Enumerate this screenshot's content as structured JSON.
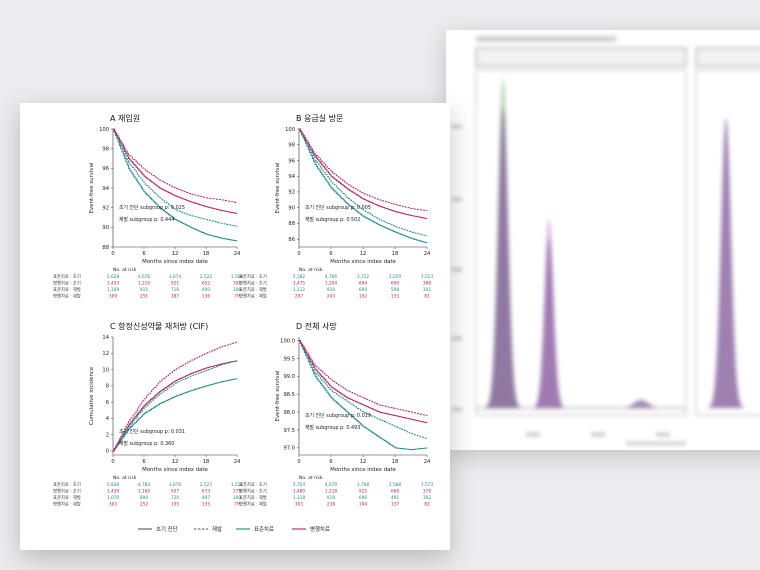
{
  "colors": {
    "teal": "#1f8a8c",
    "magenta": "#b0245e",
    "violet": "#8d6aa3",
    "purple_dark": "#5b3a6e",
    "green": "#8fbf88"
  },
  "back_figure": {
    "title": "",
    "strip_left": "",
    "strip_right": ""
  },
  "chart_data": [
    {
      "panel": "A",
      "type": "line",
      "title": "A  재입원",
      "xlabel": "Months since index date",
      "ylabel": "Event-free survival",
      "xlim": [
        0,
        24
      ],
      "ylim": [
        88,
        100
      ],
      "xticks": [
        "0",
        "6",
        "12",
        "18",
        "24"
      ],
      "yticks": [
        "88",
        "90",
        "92",
        "94",
        "96",
        "98",
        "100"
      ],
      "annotations": [
        "초기 진단 subgroup p:  0.025",
        "재발 subgroup p:  0.444"
      ],
      "series": [
        {
          "name": "표준치료 · 초기",
          "color": "teal",
          "dash": false,
          "x": [
            0,
            3,
            6,
            9,
            12,
            15,
            18,
            21,
            24
          ],
          "y": [
            100,
            96.0,
            93.6,
            92.0,
            90.8,
            90.0,
            89.3,
            88.9,
            88.6
          ]
        },
        {
          "name": "병행치료 · 초기",
          "color": "magenta",
          "dash": false,
          "x": [
            0,
            3,
            6,
            9,
            12,
            15,
            18,
            21,
            24
          ],
          "y": [
            100,
            97.0,
            95.2,
            94.0,
            93.2,
            92.6,
            92.1,
            91.7,
            91.4
          ]
        },
        {
          "name": "표준치료 · 재발",
          "color": "teal",
          "dash": true,
          "x": [
            0,
            3,
            6,
            9,
            12,
            15,
            18,
            21,
            24
          ],
          "y": [
            100,
            96.6,
            94.5,
            93.0,
            91.8,
            91.2,
            90.8,
            90.4,
            90.1
          ]
        },
        {
          "name": "병행치료 · 재발",
          "color": "magenta",
          "dash": true,
          "x": [
            0,
            3,
            6,
            9,
            12,
            15,
            18,
            21,
            24
          ],
          "y": [
            100,
            97.4,
            95.9,
            94.8,
            94.0,
            93.4,
            93.0,
            92.8,
            92.5
          ]
        }
      ],
      "risk_table": {
        "header": "No. at risk",
        "rows": [
          {
            "label": "표준치료 · 초기",
            "color": "teal",
            "values": [
              "5,628",
              "4,676",
              "3,674",
              "2,522",
              "1,560"
            ]
          },
          {
            "label": "병행치료 · 초기",
            "color": "magenta",
            "values": [
              "1,433",
              "1,210",
              "921",
              "652",
              "392"
            ]
          },
          {
            "label": "표준치료 · 재발",
            "color": "teal",
            "values": [
              "1,109",
              "915",
              "716",
              "490",
              "306"
            ]
          },
          {
            "label": "병행치료 · 재발",
            "color": "magenta",
            "values": [
              "309",
              "251",
              "187",
              "136",
              "79"
            ]
          }
        ]
      }
    },
    {
      "panel": "B",
      "type": "line",
      "title": "B  응급실 방문",
      "xlabel": "Months since index date",
      "ylabel": "Event-free survival",
      "xlim": [
        0,
        24
      ],
      "ylim": [
        85,
        100
      ],
      "xticks": [
        "0",
        "6",
        "12",
        "18",
        "24"
      ],
      "yticks": [
        "86",
        "88",
        "90",
        "92",
        "94",
        "96",
        "98",
        "100"
      ],
      "annotations": [
        "초기 진단 subgroup p:  0.005",
        "재발 subgroup p:  0.502"
      ],
      "series": [
        {
          "name": "표준치료 · 초기",
          "color": "teal",
          "dash": false,
          "x": [
            0,
            3,
            6,
            9,
            12,
            15,
            18,
            21,
            24
          ],
          "y": [
            100,
            95.5,
            92.5,
            90.5,
            88.9,
            87.8,
            86.9,
            86.1,
            85.5
          ]
        },
        {
          "name": "병행치료 · 초기",
          "color": "magenta",
          "dash": false,
          "x": [
            0,
            3,
            6,
            9,
            12,
            15,
            18,
            21,
            24
          ],
          "y": [
            100,
            96.5,
            94.0,
            92.4,
            91.1,
            90.2,
            89.5,
            89.0,
            88.6
          ]
        },
        {
          "name": "표준치료 · 재발",
          "color": "teal",
          "dash": true,
          "x": [
            0,
            3,
            6,
            9,
            12,
            15,
            18,
            21,
            24
          ],
          "y": [
            100,
            96.0,
            93.3,
            91.3,
            89.7,
            88.5,
            87.6,
            86.9,
            86.4
          ]
        },
        {
          "name": "병행치료 · 재발",
          "color": "magenta",
          "dash": true,
          "x": [
            0,
            3,
            6,
            9,
            12,
            15,
            18,
            21,
            24
          ],
          "y": [
            100,
            96.8,
            94.6,
            93.0,
            91.8,
            91.0,
            90.4,
            89.9,
            89.6
          ]
        }
      ],
      "risk_table": {
        "header": "No. at risk",
        "rows": [
          {
            "label": "표준치료 · 초기",
            "color": "teal",
            "values": [
              "5,582",
              "4,766",
              "3,712",
              "2,559",
              "1,523"
            ]
          },
          {
            "label": "병행치료 · 초기",
            "color": "magenta",
            "values": [
              "1,475",
              "1,204",
              "894",
              "669",
              "388"
            ]
          },
          {
            "label": "표준치료 · 재발",
            "color": "teal",
            "values": [
              "1,112",
              "910",
              "694",
              "508",
              "301"
            ]
          },
          {
            "label": "병행치료 · 재발",
            "color": "magenta",
            "values": [
              "297",
              "243",
              "192",
              "133",
              "81"
            ]
          }
        ]
      }
    },
    {
      "panel": "C",
      "type": "line",
      "title": "C  항정신성약물 재처방 (CIF)",
      "xlabel": "Months since index date",
      "ylabel": "Cumulative incidence",
      "xlim": [
        0,
        24
      ],
      "ylim": [
        -0.5,
        14
      ],
      "xticks": [
        "0",
        "6",
        "12",
        "18",
        "24"
      ],
      "yticks": [
        "0",
        "2",
        "4",
        "6",
        "8",
        "10",
        "12",
        "14"
      ],
      "annotations": [
        "초기 진단 subgroup p:  0.031",
        "재발 subgroup p:  0.360"
      ],
      "series": [
        {
          "name": "표준치료 · 초기",
          "color": "teal",
          "dash": false,
          "x": [
            0,
            3,
            6,
            9,
            12,
            15,
            18,
            21,
            24
          ],
          "y": [
            0,
            2.7,
            4.6,
            5.8,
            6.7,
            7.4,
            8.0,
            8.5,
            8.9
          ]
        },
        {
          "name": "병행치료 · 초기",
          "color": "magenta",
          "dash": false,
          "x": [
            0,
            3,
            6,
            9,
            12,
            15,
            18,
            21,
            24
          ],
          "y": [
            0,
            3.2,
            5.6,
            7.3,
            8.6,
            9.5,
            10.2,
            10.7,
            11.1
          ]
        },
        {
          "name": "표준치료 · 재발",
          "color": "teal",
          "dash": true,
          "x": [
            0,
            3,
            6,
            9,
            12,
            15,
            18,
            21,
            24
          ],
          "y": [
            0,
            3.0,
            5.3,
            7.0,
            8.3,
            9.2,
            9.9,
            10.6,
            11.1
          ]
        },
        {
          "name": "병행치료 · 재발",
          "color": "magenta",
          "dash": true,
          "x": [
            0,
            3,
            6,
            9,
            12,
            15,
            18,
            21,
            24
          ],
          "y": [
            0,
            3.6,
            6.4,
            8.5,
            10.0,
            11.1,
            12.0,
            12.8,
            13.4
          ]
        }
      ],
      "risk_table": {
        "header": "No. at risk",
        "rows": [
          {
            "label": "표준치료 · 초기",
            "color": "teal",
            "values": [
              "5,838",
              "4,784",
              "3,676",
              "2,527",
              "1,512"
            ]
          },
          {
            "label": "병행치료 · 초기",
            "color": "magenta",
            "values": [
              "1,439",
              "1,160",
              "937",
              "673",
              "379"
            ]
          },
          {
            "label": "표준치료 · 재발",
            "color": "teal",
            "values": [
              "1,070",
              "890",
              "720",
              "497",
              "300"
            ]
          },
          {
            "label": "병행치료 · 재발",
            "color": "magenta",
            "values": [
              "303",
              "252",
              "195",
              "135",
              "79"
            ]
          }
        ]
      }
    },
    {
      "panel": "D",
      "type": "line",
      "title": "D  전체 사망",
      "xlabel": "Months since index date",
      "ylabel": "Event-free survival",
      "xlim": [
        0,
        24
      ],
      "ylim": [
        96.8,
        100.1
      ],
      "xticks": [
        "0",
        "6",
        "12",
        "18",
        "24"
      ],
      "yticks": [
        "97.0",
        "97.5",
        "98.0",
        "98.5",
        "99.0",
        "99.5",
        "100.0"
      ],
      "annotations": [
        "초기 진단 subgroup p:  0.019",
        "재발 subgroup p:  0.493"
      ],
      "series": [
        {
          "name": "표준치료 · 초기",
          "color": "teal",
          "dash": false,
          "x": [
            0,
            3,
            6,
            9,
            12,
            15,
            18,
            21,
            24
          ],
          "y": [
            100,
            99.0,
            98.4,
            98.0,
            97.6,
            97.3,
            97.0,
            96.95,
            97.0
          ]
        },
        {
          "name": "병행치료 · 초기",
          "color": "magenta",
          "dash": false,
          "x": [
            0,
            3,
            6,
            9,
            12,
            15,
            18,
            21,
            24
          ],
          "y": [
            100,
            99.2,
            98.7,
            98.4,
            98.2,
            98.0,
            97.9,
            97.8,
            97.7
          ]
        },
        {
          "name": "표준치료 · 재발",
          "color": "teal",
          "dash": true,
          "x": [
            0,
            3,
            6,
            9,
            12,
            15,
            18,
            21,
            24
          ],
          "y": [
            100,
            99.1,
            98.6,
            98.3,
            98.0,
            97.8,
            97.6,
            97.4,
            97.25
          ]
        },
        {
          "name": "병행치료 · 재발",
          "color": "magenta",
          "dash": true,
          "x": [
            0,
            3,
            6,
            9,
            12,
            15,
            18,
            21,
            24
          ],
          "y": [
            100,
            99.3,
            98.9,
            98.6,
            98.4,
            98.2,
            98.1,
            98.0,
            97.9
          ]
        }
      ],
      "risk_table": {
        "header": "No. at risk",
        "rows": [
          {
            "label": "표준치료 · 초기",
            "color": "teal",
            "values": [
              "5,754",
              "4,679",
              "3,708",
              "2,588",
              "1,573"
            ]
          },
          {
            "label": "병행치료 · 초기",
            "color": "magenta",
            "values": [
              "1,480",
              "1,218",
              "925",
              "668",
              "379"
            ]
          },
          {
            "label": "표준치료 · 재발",
            "color": "teal",
            "values": [
              "1,118",
              "919",
              "696",
              "491",
              "302"
            ]
          },
          {
            "label": "병행치료 · 재발",
            "color": "magenta",
            "values": [
              "303",
              "238",
              "194",
              "137",
              "82"
            ]
          }
        ]
      }
    }
  ],
  "legend": {
    "items": [
      {
        "label": "초기 진단",
        "style": "solid",
        "color": "#555555"
      },
      {
        "label": "재발",
        "style": "dash",
        "color": "#555555"
      },
      {
        "label": "표준치료",
        "style": "solid",
        "color": "teal"
      },
      {
        "label": "병행치료",
        "style": "solid",
        "color": "magenta"
      }
    ]
  }
}
